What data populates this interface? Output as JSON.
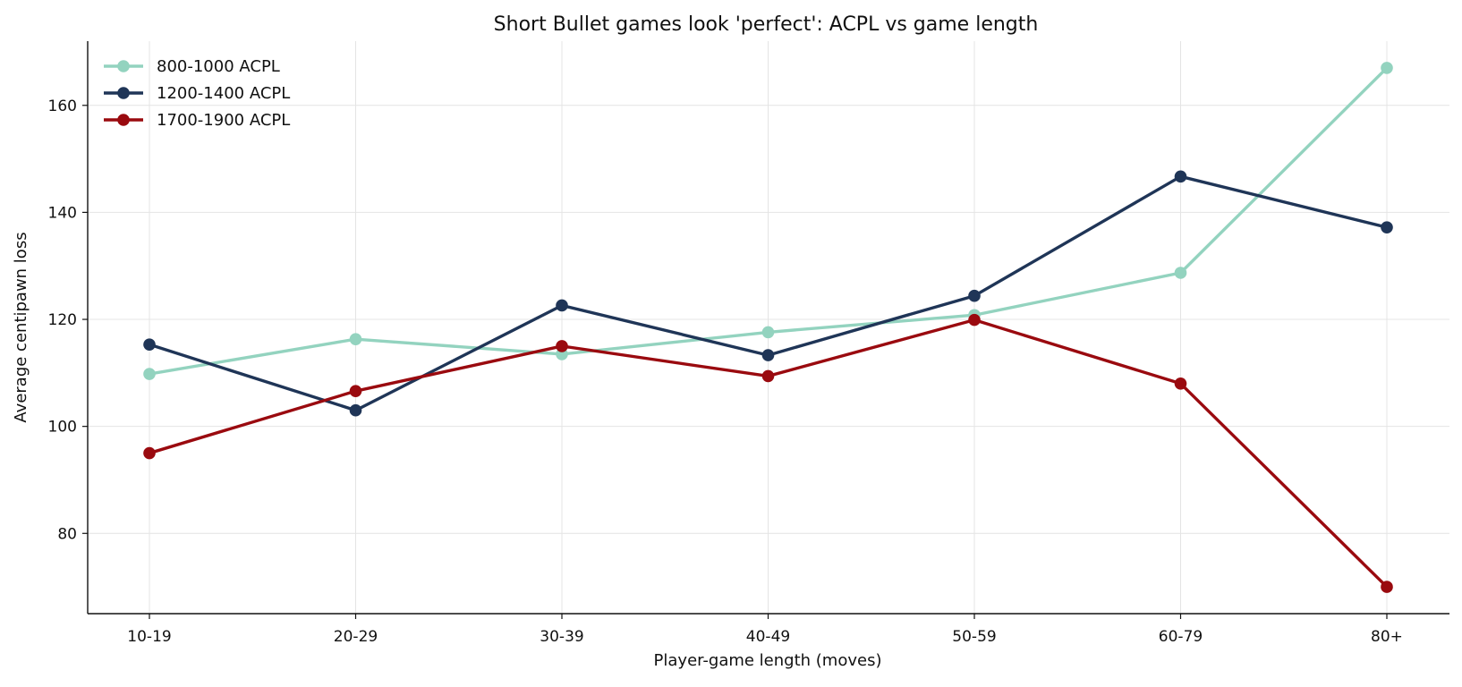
{
  "chart_data": {
    "type": "line",
    "title": "Short Bullet games look 'perfect': ACPL vs game length",
    "xlabel": "Player-game length (moves)",
    "ylabel": "Average centipawn loss",
    "categories": [
      "10-19",
      "20-29",
      "30-39",
      "40-49",
      "50-59",
      "60-79",
      "80+"
    ],
    "y_ticks": [
      80,
      100,
      120,
      140,
      160
    ],
    "ylim": [
      65,
      172
    ],
    "grid": true,
    "legend_position": "top-left",
    "series": [
      {
        "name": "800-1000 ACPL",
        "color": "#93d3bf",
        "values": [
          109.8,
          116.3,
          113.5,
          117.6,
          120.8,
          128.7,
          167.0
        ]
      },
      {
        "name": "1200-1400 ACPL",
        "color": "#1f3557",
        "values": [
          115.3,
          103.0,
          122.6,
          113.3,
          124.4,
          146.7,
          137.2
        ]
      },
      {
        "name": "1700-1900 ACPL",
        "color": "#9a0a0f",
        "values": [
          95.0,
          106.6,
          115.0,
          109.4,
          119.9,
          108.0,
          70.0
        ]
      }
    ]
  }
}
